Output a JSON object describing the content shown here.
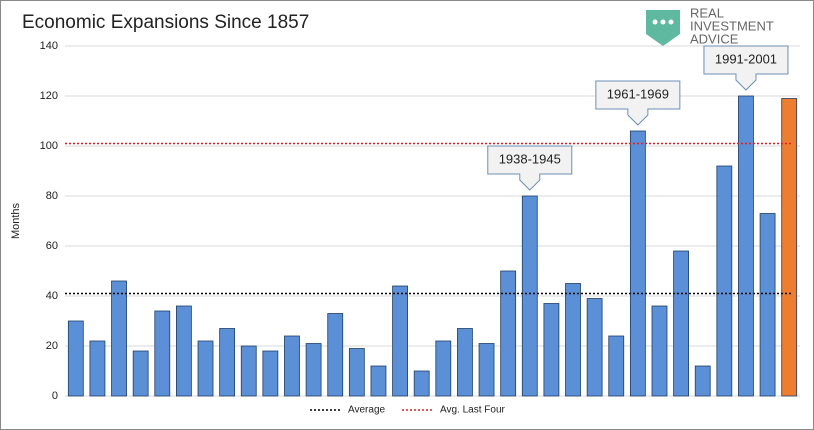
{
  "chart_data": {
    "type": "bar",
    "title": "Economic Expansions Since 1857",
    "y_label": "Months",
    "logo": [
      "REAL",
      "INVESTMENT",
      "ADVICE"
    ],
    "values": [
      30,
      22,
      46,
      18,
      34,
      36,
      22,
      27,
      20,
      18,
      24,
      21,
      33,
      19,
      12,
      44,
      10,
      22,
      27,
      21,
      50,
      80,
      37,
      45,
      39,
      24,
      106,
      36,
      58,
      12,
      92,
      120,
      73,
      119
    ],
    "colors": [
      "#5b8fd6",
      "#5b8fd6",
      "#5b8fd6",
      "#5b8fd6",
      "#5b8fd6",
      "#5b8fd6",
      "#5b8fd6",
      "#5b8fd6",
      "#5b8fd6",
      "#5b8fd6",
      "#5b8fd6",
      "#5b8fd6",
      "#5b8fd6",
      "#5b8fd6",
      "#5b8fd6",
      "#5b8fd6",
      "#5b8fd6",
      "#5b8fd6",
      "#5b8fd6",
      "#5b8fd6",
      "#5b8fd6",
      "#5b8fd6",
      "#5b8fd6",
      "#5b8fd6",
      "#5b8fd6",
      "#5b8fd6",
      "#5b8fd6",
      "#5b8fd6",
      "#5b8fd6",
      "#5b8fd6",
      "#5b8fd6",
      "#5b8fd6",
      "#5b8fd6",
      "#ed7d31"
    ],
    "reference_lines": [
      {
        "name": "Average",
        "value": 41,
        "color": "#000000"
      },
      {
        "name": "Avg. Last Four",
        "value": 101,
        "color": "#e02020"
      }
    ],
    "annotations": [
      {
        "text": "1938-1945",
        "index": 21
      },
      {
        "text": "1961-1969",
        "index": 26
      },
      {
        "text": "1991-2001",
        "index": 31
      }
    ],
    "ylim": [
      0,
      140
    ],
    "yticks": [
      0,
      20,
      40,
      60,
      80,
      100,
      120,
      140
    ],
    "grid": true
  }
}
